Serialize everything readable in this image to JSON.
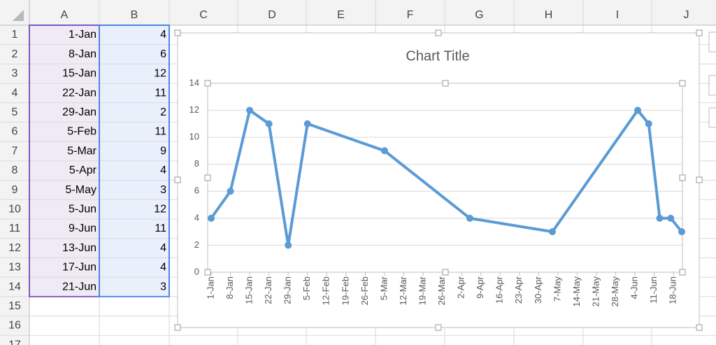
{
  "sheet": {
    "column_headers": [
      "A",
      "B",
      "C",
      "D",
      "E",
      "F",
      "G",
      "H",
      "I",
      "J"
    ],
    "row_headers": [
      1,
      2,
      3,
      4,
      5,
      6,
      7,
      8,
      9,
      10,
      11,
      12,
      13,
      14,
      15,
      16,
      17
    ]
  },
  "chart_data": {
    "type": "line",
    "title": "Chart Title",
    "x": [
      "1-Jan",
      "8-Jan",
      "15-Jan",
      "22-Jan",
      "29-Jan",
      "5-Feb",
      "5-Mar",
      "5-Apr",
      "5-May",
      "5-Jun",
      "9-Jun",
      "13-Jun",
      "17-Jun",
      "21-Jun"
    ],
    "values": [
      4,
      6,
      12,
      11,
      2,
      11,
      9,
      4,
      3,
      12,
      11,
      4,
      4,
      3
    ],
    "color": "#5b9bd5",
    "xlim": [
      "1-Jan",
      "21-Jun"
    ],
    "xticks": [
      "1-Jan",
      "8-Jan",
      "15-Jan",
      "22-Jan",
      "29-Jan",
      "5-Feb",
      "12-Feb",
      "19-Feb",
      "26-Feb",
      "5-Mar",
      "12-Mar",
      "19-Mar",
      "26-Mar",
      "2-Apr",
      "9-Apr",
      "16-Apr",
      "23-Apr",
      "30-Apr",
      "7-May",
      "14-May",
      "21-May",
      "28-May",
      "4-Jun",
      "11-Jun",
      "18-Jun"
    ],
    "ylim": [
      0,
      14
    ],
    "yticks": [
      0,
      2,
      4,
      6,
      8,
      10,
      12,
      14
    ],
    "grid": true
  }
}
